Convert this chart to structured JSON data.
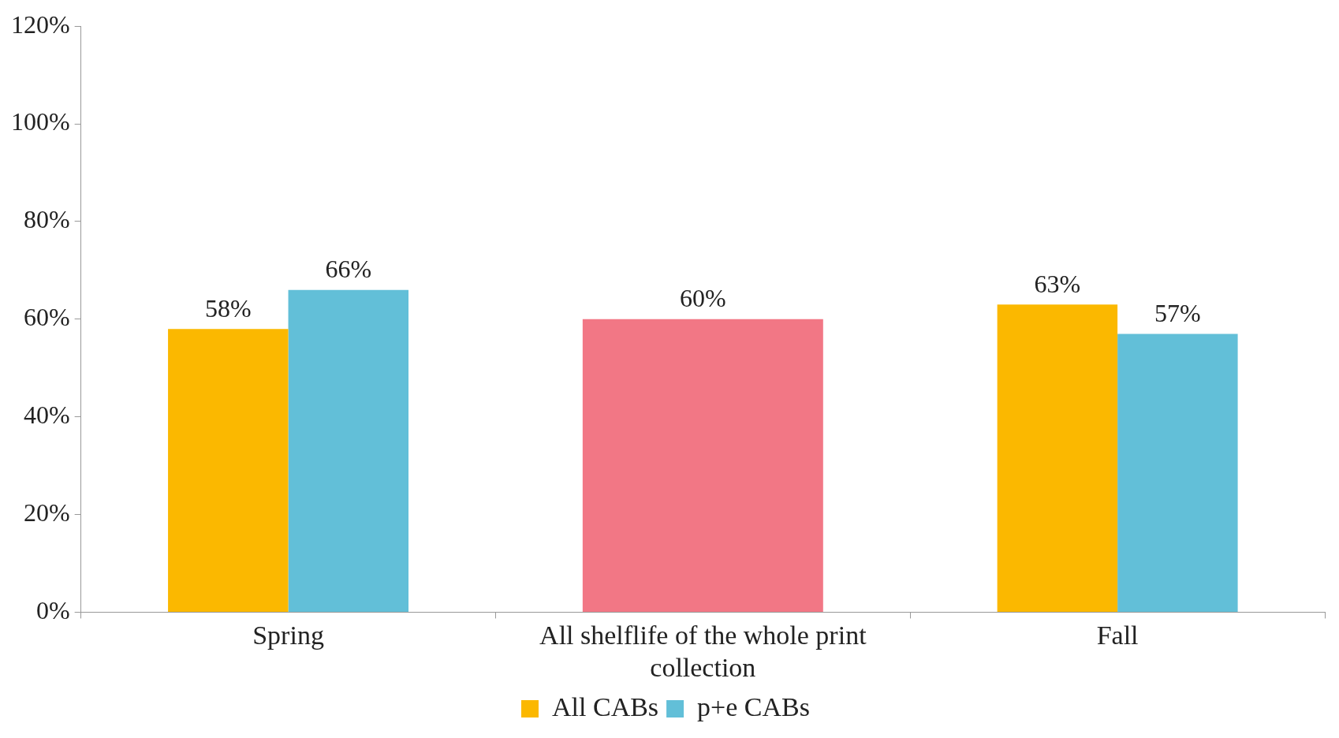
{
  "chart_data": {
    "type": "bar",
    "categories": [
      "Spring",
      "All shelflife of the whole print collection",
      "Fall"
    ],
    "series": [
      {
        "name": "All CABs",
        "color": "#fbb800",
        "values": [
          58,
          null,
          63
        ],
        "value_labels": [
          "58%",
          null,
          "63%"
        ]
      },
      {
        "name": "p+e CABs",
        "color": "#62bfd8",
        "values": [
          66,
          null,
          57
        ],
        "value_labels": [
          "66%",
          null,
          "57%"
        ]
      },
      {
        "color": "#f27785",
        "values": [
          null,
          60,
          null
        ],
        "value_labels": [
          null,
          "60%",
          null
        ]
      }
    ],
    "ylim": [
      0,
      120
    ],
    "yticks": [
      {
        "value": 0,
        "label": "0%"
      },
      {
        "value": 20,
        "label": "20%"
      },
      {
        "value": 40,
        "label": "40%"
      },
      {
        "value": 60,
        "label": "60%"
      },
      {
        "value": 80,
        "label": "80%"
      },
      {
        "value": 100,
        "label": "100%"
      },
      {
        "value": 120,
        "label": "120%"
      }
    ],
    "grid": false,
    "legend": "bottom"
  }
}
